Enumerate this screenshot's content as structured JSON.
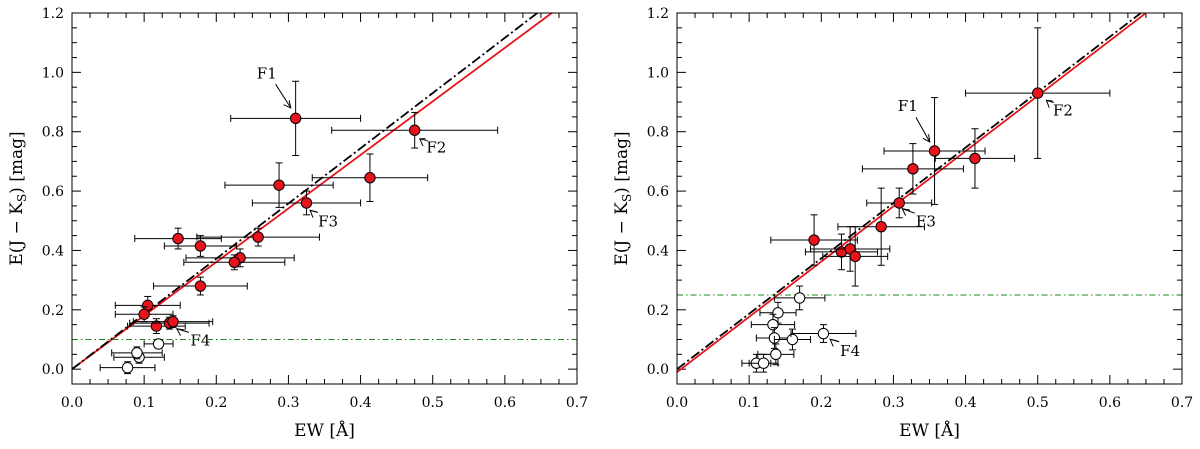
{
  "chart_data": [
    {
      "type": "scatter",
      "xlabel": "EW [Å]",
      "ylabel": "E(J − K",
      "ylabel_sub": "S",
      "ylabel_tail": ") [mag]",
      "xlim": [
        0.0,
        0.7
      ],
      "ylim": [
        -0.05,
        1.2
      ],
      "xticks": [
        "0.0",
        "0.1",
        "0.2",
        "0.3",
        "0.4",
        "0.5",
        "0.6",
        "0.7"
      ],
      "yticks": [
        "0.0",
        "0.2",
        "0.4",
        "0.6",
        "0.8",
        "1.0",
        "1.2"
      ],
      "lines": [
        {
          "name": "fit-red",
          "color": "#e8141c",
          "style": "solid",
          "x": [
            0.0,
            0.665
          ],
          "y": [
            0.0,
            1.2
          ]
        },
        {
          "name": "fit-black",
          "color": "#000000",
          "style": "dashdot",
          "x": [
            0.0,
            0.645
          ],
          "y": [
            0.0,
            1.2
          ]
        },
        {
          "name": "threshold",
          "color": "#1a8a1a",
          "style": "dashdot-thin",
          "x": [
            0.0,
            0.7
          ],
          "y": [
            0.1,
            0.1
          ]
        }
      ],
      "filled_points": [
        {
          "x": 0.31,
          "y": 0.845,
          "xerr": 0.09,
          "yerr": 0.125
        },
        {
          "x": 0.475,
          "y": 0.805,
          "xerr": 0.115,
          "yerr": 0.06
        },
        {
          "x": 0.287,
          "y": 0.62,
          "xerr": 0.075,
          "yerr": 0.075
        },
        {
          "x": 0.413,
          "y": 0.645,
          "xerr": 0.08,
          "yerr": 0.08
        },
        {
          "x": 0.325,
          "y": 0.56,
          "xerr": 0.075,
          "yerr": 0.04
        },
        {
          "x": 0.147,
          "y": 0.44,
          "xerr": 0.06,
          "yerr": 0.035
        },
        {
          "x": 0.178,
          "y": 0.415,
          "xerr": 0.05,
          "yerr": 0.035
        },
        {
          "x": 0.258,
          "y": 0.445,
          "xerr": 0.085,
          "yerr": 0.03
        },
        {
          "x": 0.233,
          "y": 0.375,
          "xerr": 0.075,
          "yerr": 0.03
        },
        {
          "x": 0.225,
          "y": 0.36,
          "xerr": 0.07,
          "yerr": 0.025
        },
        {
          "x": 0.178,
          "y": 0.28,
          "xerr": 0.065,
          "yerr": 0.03
        },
        {
          "x": 0.105,
          "y": 0.215,
          "xerr": 0.045,
          "yerr": 0.03
        },
        {
          "x": 0.1,
          "y": 0.185,
          "xerr": 0.04,
          "yerr": 0.025
        },
        {
          "x": 0.117,
          "y": 0.145,
          "xerr": 0.04,
          "yerr": 0.025
        },
        {
          "x": 0.135,
          "y": 0.155,
          "xerr": 0.055,
          "yerr": 0.02
        },
        {
          "x": 0.14,
          "y": 0.16,
          "xerr": 0.055,
          "yerr": 0.02
        }
      ],
      "open_points": [
        {
          "x": 0.12,
          "y": 0.085,
          "xerr": 0.02,
          "yerr": 0.015
        },
        {
          "x": 0.093,
          "y": 0.04,
          "xerr": 0.035,
          "yerr": 0.02
        },
        {
          "x": 0.09,
          "y": 0.055,
          "xerr": 0.035,
          "yerr": 0.02
        },
        {
          "x": 0.077,
          "y": 0.005,
          "xerr": 0.038,
          "yerr": 0.02
        }
      ],
      "annotations": [
        {
          "label": "F1",
          "text_x": 0.27,
          "text_y": 0.98,
          "point_x": 0.305,
          "point_y": 0.875
        },
        {
          "label": "F2",
          "text_x": 0.505,
          "text_y": 0.73,
          "point_x": 0.48,
          "point_y": 0.78
        },
        {
          "label": "F3",
          "text_x": 0.355,
          "text_y": 0.48,
          "point_x": 0.328,
          "point_y": 0.54
        },
        {
          "label": "F4",
          "text_x": 0.178,
          "text_y": 0.08,
          "point_x": 0.143,
          "point_y": 0.14
        }
      ]
    },
    {
      "type": "scatter",
      "xlabel": "EW [Å]",
      "ylabel": "E(J − K",
      "ylabel_sub": "S",
      "ylabel_tail": ") [mag]",
      "xlim": [
        0.0,
        0.7
      ],
      "ylim": [
        -0.05,
        1.2
      ],
      "xticks": [
        "0.0",
        "0.1",
        "0.2",
        "0.3",
        "0.4",
        "0.5",
        "0.6",
        "0.7"
      ],
      "yticks": [
        "0.0",
        "0.2",
        "0.4",
        "0.6",
        "0.8",
        "1.0",
        "1.2"
      ],
      "lines": [
        {
          "name": "fit-red",
          "color": "#e8141c",
          "style": "solid",
          "x": [
            0.0,
            0.65
          ],
          "y": [
            -0.01,
            1.2
          ]
        },
        {
          "name": "fit-black",
          "color": "#000000",
          "style": "dashdot",
          "x": [
            0.0,
            0.643
          ],
          "y": [
            0.0,
            1.2
          ]
        },
        {
          "name": "threshold",
          "color": "#1a8a1a",
          "style": "dashdot-thin",
          "x": [
            0.0,
            0.7
          ],
          "y": [
            0.25,
            0.25
          ]
        }
      ],
      "filled_points": [
        {
          "x": 0.5,
          "y": 0.93,
          "xerr": 0.1,
          "yerr": 0.22
        },
        {
          "x": 0.357,
          "y": 0.735,
          "xerr": 0.07,
          "yerr": 0.18
        },
        {
          "x": 0.327,
          "y": 0.675,
          "xerr": 0.07,
          "yerr": 0.085
        },
        {
          "x": 0.413,
          "y": 0.71,
          "xerr": 0.055,
          "yerr": 0.1
        },
        {
          "x": 0.308,
          "y": 0.56,
          "xerr": 0.045,
          "yerr": 0.05
        },
        {
          "x": 0.283,
          "y": 0.48,
          "xerr": 0.06,
          "yerr": 0.13
        },
        {
          "x": 0.19,
          "y": 0.435,
          "xerr": 0.06,
          "yerr": 0.085
        },
        {
          "x": 0.228,
          "y": 0.395,
          "xerr": 0.05,
          "yerr": 0.06
        },
        {
          "x": 0.24,
          "y": 0.405,
          "xerr": 0.055,
          "yerr": 0.075
        },
        {
          "x": 0.247,
          "y": 0.38,
          "xerr": 0.045,
          "yerr": 0.1
        }
      ],
      "open_points": [
        {
          "x": 0.17,
          "y": 0.24,
          "xerr": 0.035,
          "yerr": 0.04
        },
        {
          "x": 0.14,
          "y": 0.19,
          "xerr": 0.025,
          "yerr": 0.035
        },
        {
          "x": 0.133,
          "y": 0.15,
          "xerr": 0.03,
          "yerr": 0.035
        },
        {
          "x": 0.135,
          "y": 0.105,
          "xerr": 0.025,
          "yerr": 0.035
        },
        {
          "x": 0.16,
          "y": 0.1,
          "xerr": 0.025,
          "yerr": 0.035
        },
        {
          "x": 0.203,
          "y": 0.12,
          "xerr": 0.045,
          "yerr": 0.03
        },
        {
          "x": 0.137,
          "y": 0.05,
          "xerr": 0.025,
          "yerr": 0.035
        },
        {
          "x": 0.11,
          "y": 0.02,
          "xerr": 0.02,
          "yerr": 0.03
        },
        {
          "x": 0.12,
          "y": 0.02,
          "xerr": 0.02,
          "yerr": 0.03
        }
      ],
      "annotations": [
        {
          "label": "F1",
          "text_x": 0.32,
          "text_y": 0.87,
          "point_x": 0.352,
          "point_y": 0.76
        },
        {
          "label": "F2",
          "text_x": 0.535,
          "text_y": 0.855,
          "point_x": 0.51,
          "point_y": 0.91
        },
        {
          "label": "F3",
          "text_x": 0.345,
          "text_y": 0.48,
          "point_x": 0.31,
          "point_y": 0.545
        },
        {
          "label": "F4",
          "text_x": 0.24,
          "text_y": 0.045,
          "point_x": 0.21,
          "point_y": 0.105
        }
      ]
    }
  ]
}
